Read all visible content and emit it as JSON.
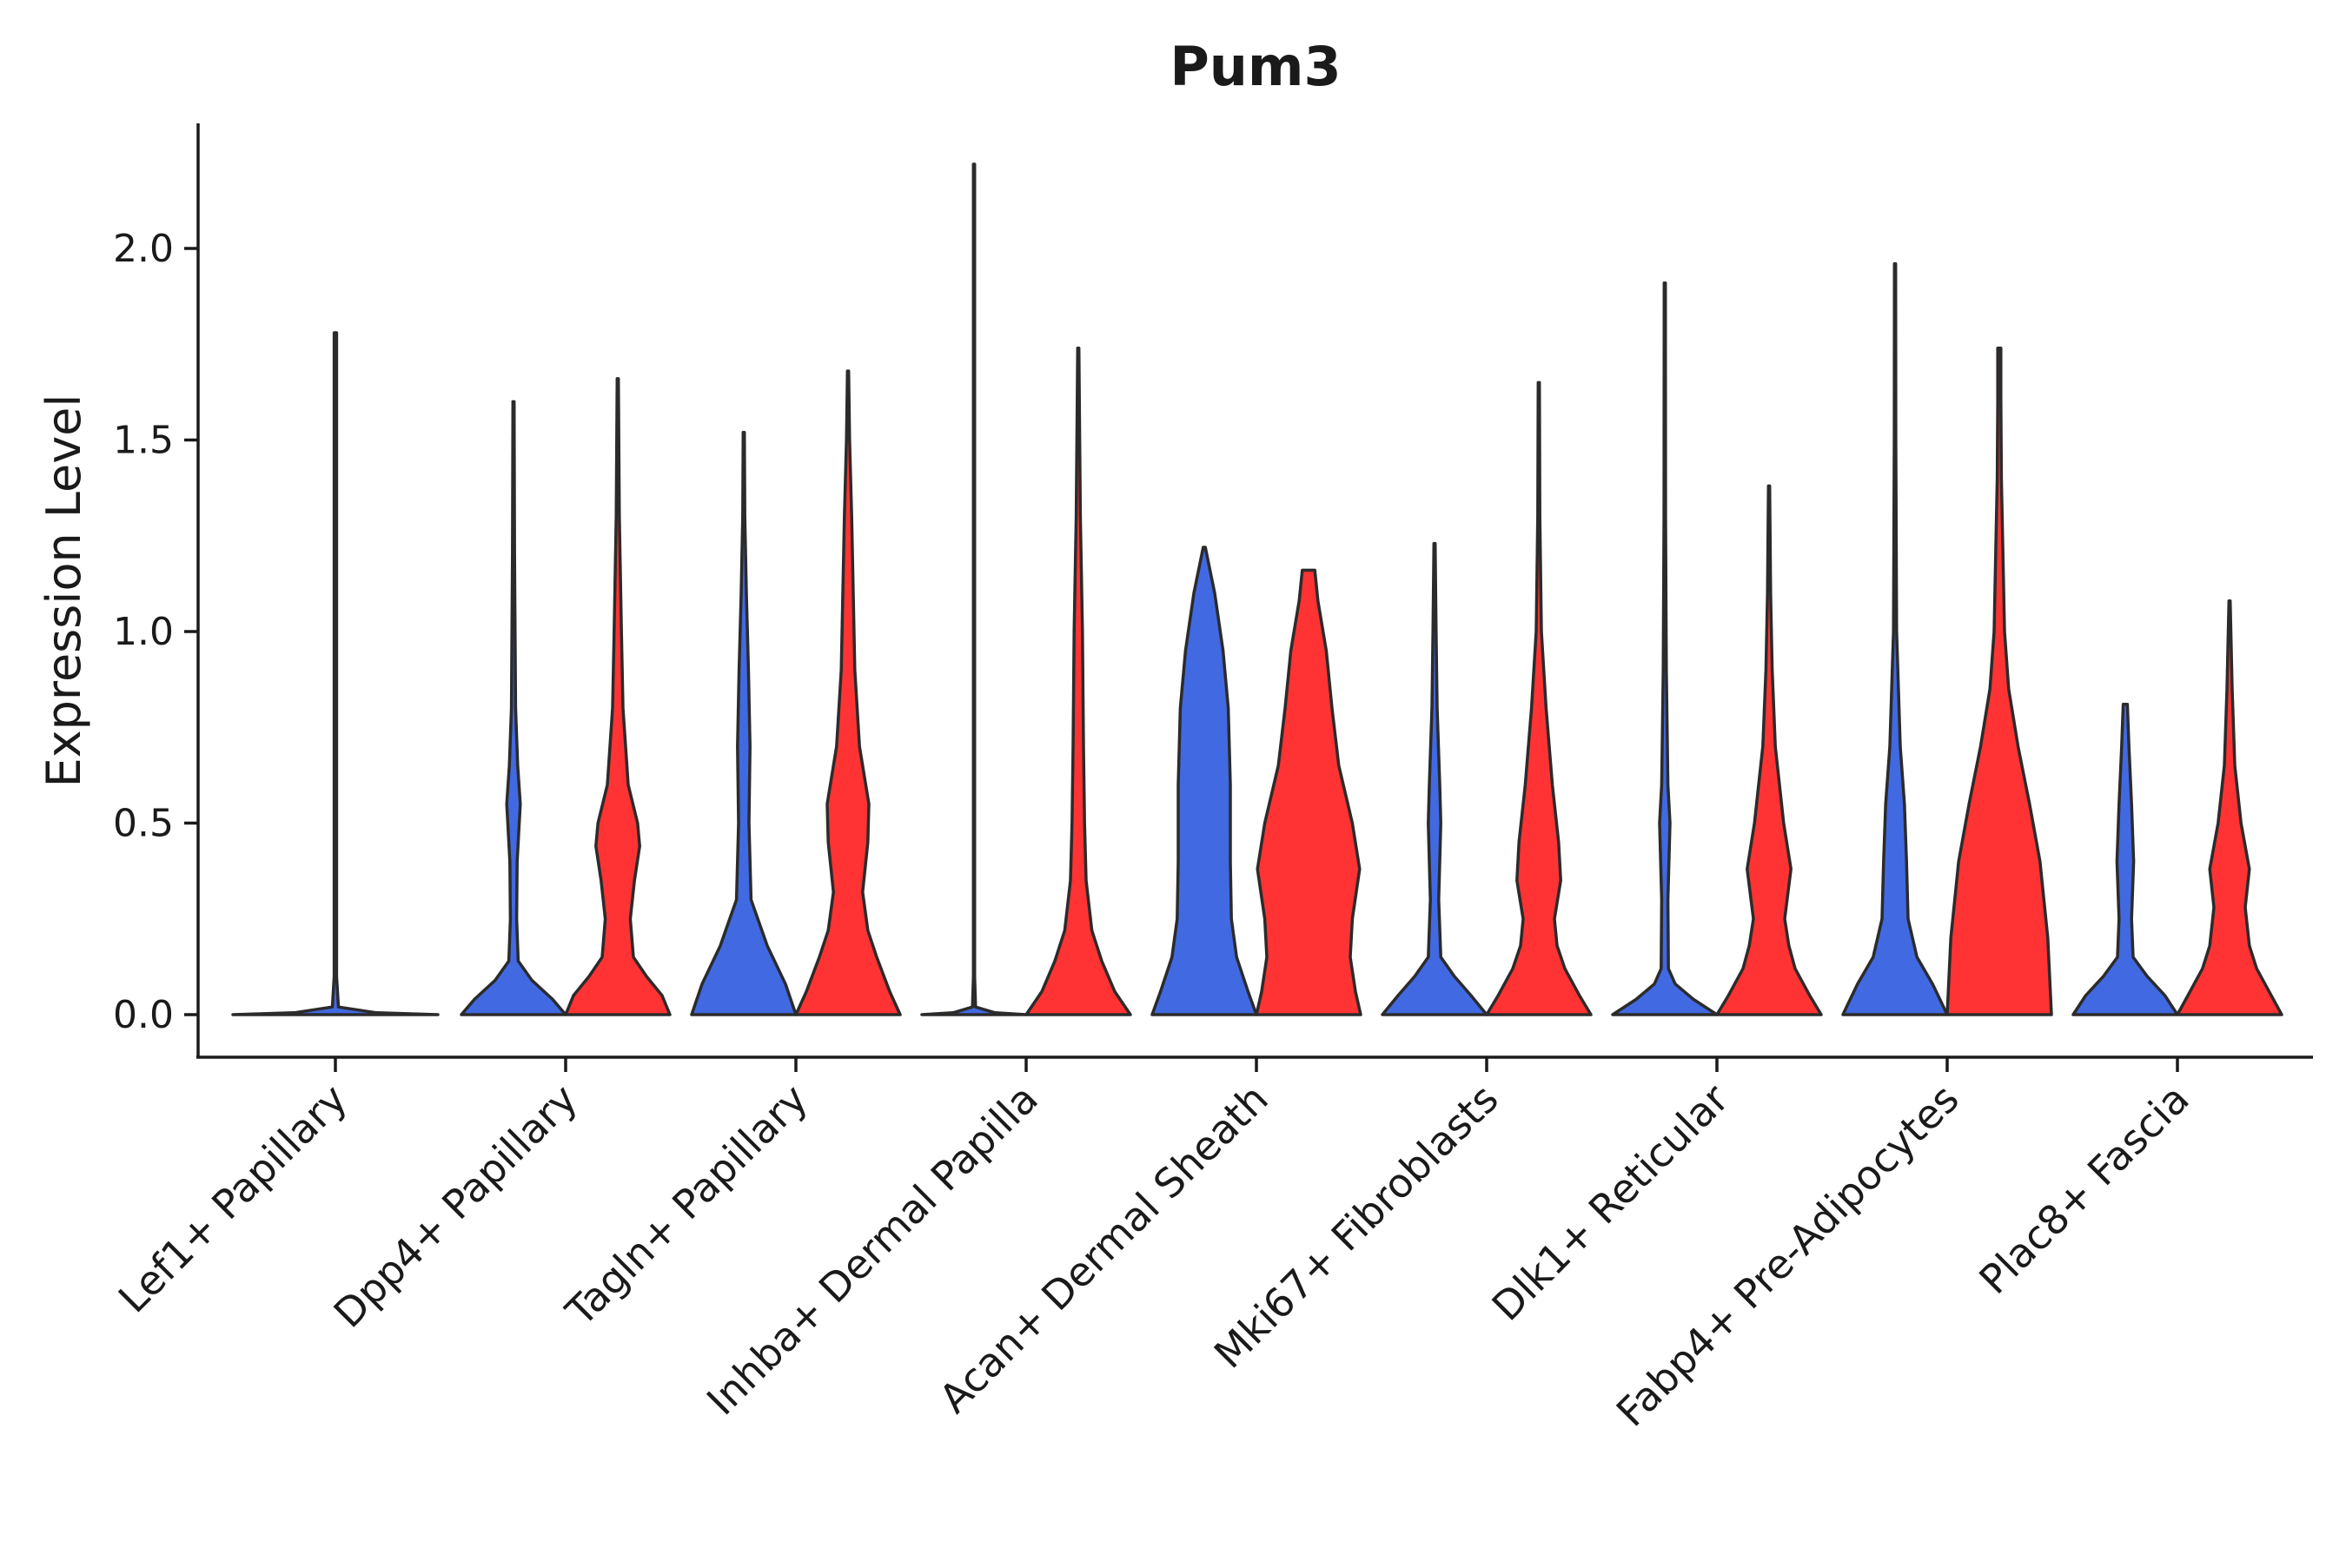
{
  "chart_data": {
    "type": "violin",
    "title": "Pum3",
    "xlabel": "",
    "ylabel": "Expression Level",
    "ylim": [
      -0.11,
      2.33
    ],
    "yticks": [
      0.0,
      0.5,
      1.0,
      1.5,
      2.0
    ],
    "ytick_labels": [
      "0.0",
      "0.5",
      "1.0",
      "1.5",
      "2.0"
    ],
    "grid": false,
    "series_colors": [
      "#4169E1",
      "#FF3333"
    ],
    "categories": [
      "Lef1+ Papillary",
      "Dpp4+ Papillary",
      "Tagln+ Papillary",
      "Inhba+ Dermal Papilla",
      "Acan+ Dermal Sheath",
      "Mki67+ Fibroblasts",
      "Dlk1+ Reticular",
      "Fabp4+ Pre-Adipocytes",
      "Plac8+ Fascia"
    ],
    "groups": [
      {
        "category": "Lef1+ Papillary",
        "violins": [
          {
            "color": "#4169E1",
            "max": 1.78,
            "density": [
              [
                0.0,
                1.0
              ],
              [
                0.005,
                0.4
              ],
              [
                0.02,
                0.03
              ],
              [
                0.1,
                0.012
              ],
              [
                0.5,
                0.012
              ],
              [
                1.0,
                0.012
              ],
              [
                1.78,
                0.012
              ]
            ]
          }
        ]
      },
      {
        "category": "Dpp4+ Papillary",
        "violins": [
          {
            "color": "#4169E1",
            "max": 1.6,
            "density": [
              [
                0.0,
                1.0
              ],
              [
                0.04,
                0.75
              ],
              [
                0.09,
                0.35
              ],
              [
                0.14,
                0.09
              ],
              [
                0.25,
                0.06
              ],
              [
                0.4,
                0.07
              ],
              [
                0.55,
                0.13
              ],
              [
                0.65,
                0.08
              ],
              [
                0.8,
                0.04
              ],
              [
                1.2,
                0.02
              ],
              [
                1.6,
                0.012
              ]
            ]
          },
          {
            "color": "#FF3333",
            "max": 1.66,
            "density": [
              [
                0.0,
                1.0
              ],
              [
                0.05,
                0.85
              ],
              [
                0.1,
                0.55
              ],
              [
                0.15,
                0.3
              ],
              [
                0.25,
                0.24
              ],
              [
                0.35,
                0.32
              ],
              [
                0.44,
                0.42
              ],
              [
                0.5,
                0.38
              ],
              [
                0.6,
                0.2
              ],
              [
                0.8,
                0.1
              ],
              [
                1.0,
                0.07
              ],
              [
                1.3,
                0.03
              ],
              [
                1.66,
                0.012
              ]
            ]
          }
        ]
      },
      {
        "category": "Tagln+ Papillary",
        "violins": [
          {
            "color": "#4169E1",
            "max": 1.52,
            "density": [
              [
                0.0,
                1.0
              ],
              [
                0.08,
                0.8
              ],
              [
                0.18,
                0.45
              ],
              [
                0.3,
                0.14
              ],
              [
                0.5,
                0.1
              ],
              [
                0.7,
                0.12
              ],
              [
                0.9,
                0.09
              ],
              [
                1.1,
                0.05
              ],
              [
                1.3,
                0.02
              ],
              [
                1.52,
                0.012
              ]
            ]
          },
          {
            "color": "#FF3333",
            "max": 1.68,
            "density": [
              [
                0.0,
                1.0
              ],
              [
                0.06,
                0.8
              ],
              [
                0.15,
                0.55
              ],
              [
                0.22,
                0.38
              ],
              [
                0.32,
                0.28
              ],
              [
                0.45,
                0.38
              ],
              [
                0.55,
                0.4
              ],
              [
                0.7,
                0.22
              ],
              [
                0.9,
                0.13
              ],
              [
                1.1,
                0.1
              ],
              [
                1.3,
                0.07
              ],
              [
                1.5,
                0.03
              ],
              [
                1.68,
                0.012
              ]
            ]
          }
        ]
      },
      {
        "category": "Inhba+ Dermal Papilla",
        "violins": [
          {
            "color": "#4169E1",
            "max": 2.22,
            "density": [
              [
                0.0,
                1.0
              ],
              [
                0.005,
                0.4
              ],
              [
                0.02,
                0.03
              ],
              [
                0.1,
                0.012
              ],
              [
                0.5,
                0.012
              ],
              [
                1.0,
                0.012
              ],
              [
                2.22,
                0.012
              ]
            ]
          },
          {
            "color": "#FF3333",
            "max": 1.74,
            "density": [
              [
                0.0,
                1.0
              ],
              [
                0.06,
                0.7
              ],
              [
                0.14,
                0.45
              ],
              [
                0.22,
                0.26
              ],
              [
                0.35,
                0.15
              ],
              [
                0.5,
                0.12
              ],
              [
                0.7,
                0.1
              ],
              [
                1.0,
                0.08
              ],
              [
                1.3,
                0.04
              ],
              [
                1.74,
                0.012
              ]
            ]
          }
        ]
      },
      {
        "category": "Acan+ Dermal Sheath",
        "violins": [
          {
            "color": "#4169E1",
            "max": 1.22,
            "density": [
              [
                0.0,
                1.0
              ],
              [
                0.06,
                0.84
              ],
              [
                0.15,
                0.62
              ],
              [
                0.25,
                0.52
              ],
              [
                0.4,
                0.5
              ],
              [
                0.6,
                0.5
              ],
              [
                0.8,
                0.46
              ],
              [
                0.95,
                0.36
              ],
              [
                1.1,
                0.2
              ],
              [
                1.22,
                0.02
              ]
            ]
          },
          {
            "color": "#FF3333",
            "max": 1.16,
            "density": [
              [
                0.0,
                1.0
              ],
              [
                0.06,
                0.9
              ],
              [
                0.15,
                0.8
              ],
              [
                0.25,
                0.84
              ],
              [
                0.38,
                0.98
              ],
              [
                0.5,
                0.84
              ],
              [
                0.65,
                0.58
              ],
              [
                0.8,
                0.45
              ],
              [
                0.95,
                0.34
              ],
              [
                1.08,
                0.18
              ],
              [
                1.16,
                0.12
              ]
            ]
          }
        ]
      },
      {
        "category": "Mki67+ Fibroblasts",
        "violins": [
          {
            "color": "#4169E1",
            "max": 1.23,
            "density": [
              [
                0.0,
                1.0
              ],
              [
                0.05,
                0.7
              ],
              [
                0.1,
                0.38
              ],
              [
                0.15,
                0.12
              ],
              [
                0.3,
                0.08
              ],
              [
                0.5,
                0.12
              ],
              [
                0.6,
                0.1
              ],
              [
                0.8,
                0.05
              ],
              [
                1.0,
                0.03
              ],
              [
                1.23,
                0.012
              ]
            ]
          },
          {
            "color": "#FF3333",
            "max": 1.65,
            "density": [
              [
                0.0,
                1.0
              ],
              [
                0.05,
                0.78
              ],
              [
                0.12,
                0.5
              ],
              [
                0.18,
                0.35
              ],
              [
                0.25,
                0.3
              ],
              [
                0.35,
                0.42
              ],
              [
                0.45,
                0.38
              ],
              [
                0.6,
                0.26
              ],
              [
                0.8,
                0.14
              ],
              [
                1.0,
                0.05
              ],
              [
                1.3,
                0.02
              ],
              [
                1.65,
                0.012
              ]
            ]
          }
        ]
      },
      {
        "category": "Dlk1+ Reticular",
        "violins": [
          {
            "color": "#4169E1",
            "max": 1.91,
            "density": [
              [
                0.0,
                1.0
              ],
              [
                0.04,
                0.55
              ],
              [
                0.08,
                0.2
              ],
              [
                0.12,
                0.07
              ],
              [
                0.3,
                0.06
              ],
              [
                0.5,
                0.1
              ],
              [
                0.6,
                0.06
              ],
              [
                0.9,
                0.03
              ],
              [
                1.3,
                0.015
              ],
              [
                1.91,
                0.012
              ]
            ]
          },
          {
            "color": "#FF3333",
            "max": 1.38,
            "density": [
              [
                0.0,
                1.0
              ],
              [
                0.05,
                0.78
              ],
              [
                0.12,
                0.5
              ],
              [
                0.18,
                0.38
              ],
              [
                0.25,
                0.3
              ],
              [
                0.38,
                0.42
              ],
              [
                0.5,
                0.28
              ],
              [
                0.7,
                0.12
              ],
              [
                0.9,
                0.06
              ],
              [
                1.1,
                0.03
              ],
              [
                1.38,
                0.012
              ]
            ]
          }
        ]
      },
      {
        "category": "Fabp4+ Pre-Adipocytes",
        "violins": [
          {
            "color": "#4169E1",
            "max": 1.96,
            "density": [
              [
                0.0,
                1.0
              ],
              [
                0.08,
                0.72
              ],
              [
                0.15,
                0.42
              ],
              [
                0.25,
                0.25
              ],
              [
                0.4,
                0.22
              ],
              [
                0.55,
                0.18
              ],
              [
                0.7,
                0.1
              ],
              [
                1.0,
                0.03
              ],
              [
                1.5,
                0.015
              ],
              [
                1.96,
                0.012
              ]
            ]
          },
          {
            "color": "#FF3333",
            "max": 1.74,
            "density": [
              [
                0.0,
                1.0
              ],
              [
                0.2,
                0.93
              ],
              [
                0.4,
                0.78
              ],
              [
                0.55,
                0.58
              ],
              [
                0.7,
                0.36
              ],
              [
                0.85,
                0.18
              ],
              [
                1.0,
                0.1
              ],
              [
                1.2,
                0.07
              ],
              [
                1.4,
                0.04
              ],
              [
                1.6,
                0.03
              ],
              [
                1.74,
                0.03
              ]
            ]
          }
        ]
      },
      {
        "category": "Plac8+ Fascia",
        "violins": [
          {
            "color": "#4169E1",
            "max": 0.81,
            "density": [
              [
                0.0,
                1.0
              ],
              [
                0.05,
                0.76
              ],
              [
                0.1,
                0.42
              ],
              [
                0.15,
                0.15
              ],
              [
                0.25,
                0.12
              ],
              [
                0.4,
                0.16
              ],
              [
                0.55,
                0.12
              ],
              [
                0.7,
                0.07
              ],
              [
                0.81,
                0.04
              ]
            ]
          },
          {
            "color": "#FF3333",
            "max": 1.08,
            "density": [
              [
                0.0,
                1.0
              ],
              [
                0.05,
                0.8
              ],
              [
                0.12,
                0.52
              ],
              [
                0.18,
                0.38
              ],
              [
                0.28,
                0.3
              ],
              [
                0.38,
                0.38
              ],
              [
                0.5,
                0.22
              ],
              [
                0.65,
                0.1
              ],
              [
                0.85,
                0.05
              ],
              [
                1.08,
                0.012
              ]
            ]
          }
        ]
      }
    ]
  }
}
